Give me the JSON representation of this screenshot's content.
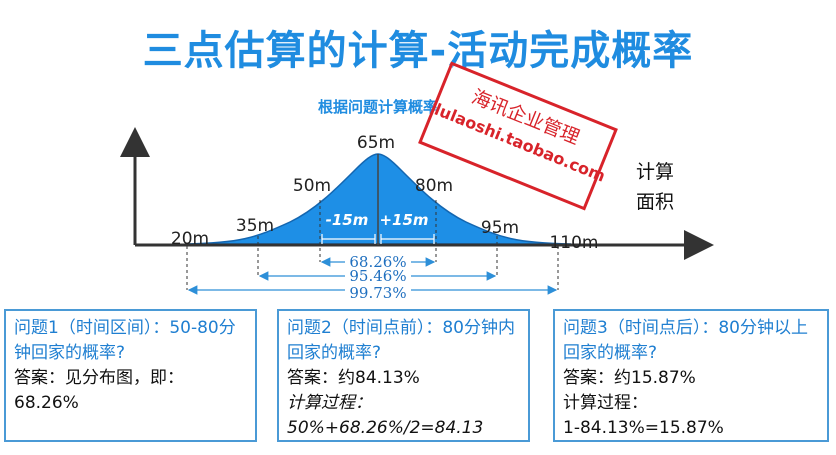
{
  "title": "三点估算的计算-活动完成概率",
  "subtitle": "根据问题计算概率",
  "axis_label_line1": "计算",
  "axis_label_line2": "面积",
  "x_labels": [
    {
      "text": "20m",
      "key": "m20"
    },
    {
      "text": "35m",
      "key": "m35"
    },
    {
      "text": "50m",
      "key": "m50"
    },
    {
      "text": "65m",
      "key": "m65"
    },
    {
      "text": "80m",
      "key": "m80"
    },
    {
      "text": "95m",
      "key": "m95"
    },
    {
      "text": "110m",
      "key": "m110"
    }
  ],
  "sigma_left": "-15m",
  "sigma_right": "+15m",
  "ranges": {
    "one_sigma": "68.26%",
    "two_sigma": "95.46%",
    "three_sigma": "99.73%"
  },
  "colors": {
    "title": "#1f8ce0",
    "curve_fill": "#1e8fe6",
    "range_lines": "#2d8fd8",
    "box_border": "#4a9ad6",
    "stamp": "#d8232a"
  },
  "stamp": {
    "line1": "海讯企业管理",
    "line2": "lulaoshi.taobao.com"
  },
  "boxes": [
    {
      "question": "问题1（时间区间）：50-80分钟回家的概率?",
      "answer": "答案：见分布图，即：68.26%"
    },
    {
      "question": "问题2（时间点前）：80分钟内回家的概率?",
      "answer": "答案：约84.13%",
      "process_label": "计算过程：",
      "process": "50%+68.26%/2=84.13"
    },
    {
      "question": "问题3（时间点后）：80分钟以上回家的概率?",
      "answer": "答案：约15.87%",
      "process_label": "计算过程：",
      "process": "1-84.13%=15.87%"
    }
  ]
}
